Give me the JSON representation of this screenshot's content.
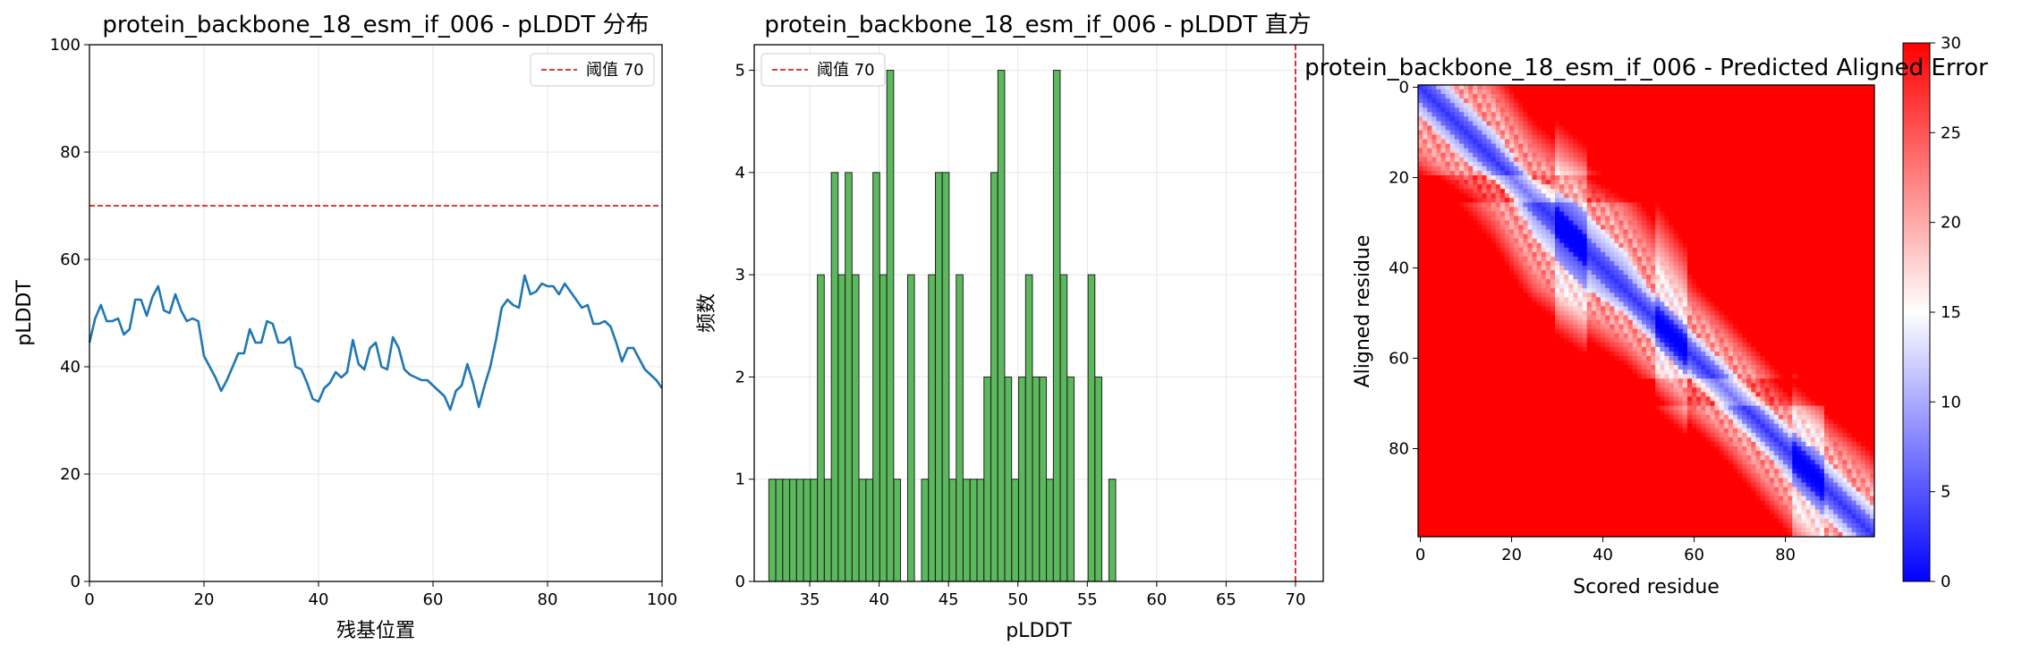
{
  "chart_data": [
    {
      "type": "line",
      "title": "protein_backbone_18_esm_if_006 - pLDDT 分布",
      "xlabel": "残基位置",
      "ylabel": "pLDDT",
      "xlim": [
        0,
        100
      ],
      "ylim": [
        0,
        100
      ],
      "xticks": [
        "0",
        "20",
        "40",
        "60",
        "80",
        "100"
      ],
      "yticks": [
        "0",
        "20",
        "40",
        "60",
        "80",
        "100"
      ],
      "grid": true,
      "legend_position": "top-right",
      "threshold": {
        "value": 70,
        "label": "阈值 70",
        "color": "#e31a1c"
      },
      "series": [
        {
          "color": "#1f77b4",
          "x": [
            0,
            1,
            2,
            3,
            4,
            5,
            6,
            7,
            8,
            9,
            10,
            11,
            12,
            13,
            14,
            15,
            16,
            17,
            18,
            19,
            20,
            21,
            22,
            23,
            24,
            25,
            26,
            27,
            28,
            29,
            30,
            31,
            32,
            33,
            34,
            35,
            36,
            37,
            38,
            39,
            40,
            41,
            42,
            43,
            44,
            45,
            46,
            47,
            48,
            49,
            50,
            51,
            52,
            53,
            54,
            55,
            56,
            57,
            58,
            59,
            60,
            61,
            62,
            63,
            64,
            65,
            66,
            67,
            68,
            69,
            70,
            71,
            72,
            73,
            74,
            75,
            76,
            77,
            78,
            79,
            80,
            81,
            82,
            83,
            84,
            85,
            86,
            87,
            88,
            89,
            90,
            91,
            92,
            93,
            94,
            95,
            96,
            97,
            98,
            99,
            100
          ],
          "y": [
            44.5,
            49,
            51.5,
            48.5,
            48.5,
            49,
            46,
            47,
            52.5,
            52.5,
            49.5,
            53,
            55,
            50.5,
            50,
            53.5,
            50.5,
            48.5,
            49,
            48.5,
            42,
            40,
            38,
            35.5,
            37.5,
            40,
            42.5,
            42.5,
            47,
            44.5,
            44.5,
            48.5,
            48,
            44.5,
            44.5,
            45.5,
            40,
            39.5,
            37,
            34,
            33.5,
            36,
            37,
            39,
            38,
            39,
            45,
            40.5,
            39.5,
            43.5,
            44.5,
            40,
            39.5,
            45.5,
            43.5,
            39.5,
            38.5,
            38,
            37.5,
            37.5,
            36.5,
            35.5,
            34.5,
            32,
            35.5,
            36.5,
            40.5,
            37,
            32.5,
            36.5,
            40,
            45,
            51,
            52.5,
            51.5,
            51,
            57,
            53.5,
            54,
            55.5,
            55,
            55,
            53.5,
            55.5,
            54,
            52.5,
            51,
            51.5,
            48,
            48,
            48.5,
            47.5,
            44.5,
            41,
            43.5,
            43.5,
            41.5,
            39.5,
            38.5,
            37.5,
            36
          ]
        }
      ]
    },
    {
      "type": "bar",
      "title": "protein_backbone_18_esm_if_006 - pLDDT 直方",
      "xlabel": "pLDDT",
      "ylabel": "频数",
      "xlim": [
        31,
        72
      ],
      "ylim": [
        0,
        5.25
      ],
      "xticks": [
        "35",
        "40",
        "45",
        "50",
        "55",
        "60",
        "65",
        "70"
      ],
      "yticks": [
        "0",
        "1",
        "2",
        "3",
        "4",
        "5"
      ],
      "grid": true,
      "legend_position": "top-left",
      "threshold": {
        "value": 70,
        "label": "阈值 70",
        "color": "#e31a1c"
      },
      "bin_width": 0.49,
      "bar_color": "#5cb85c",
      "bins": [
        {
          "x": 32.3,
          "count": 1
        },
        {
          "x": 32.8,
          "count": 1
        },
        {
          "x": 33.3,
          "count": 1
        },
        {
          "x": 33.8,
          "count": 1
        },
        {
          "x": 34.3,
          "count": 1
        },
        {
          "x": 34.8,
          "count": 1
        },
        {
          "x": 35.3,
          "count": 1
        },
        {
          "x": 35.8,
          "count": 3
        },
        {
          "x": 36.3,
          "count": 1
        },
        {
          "x": 36.8,
          "count": 4
        },
        {
          "x": 37.3,
          "count": 3
        },
        {
          "x": 37.8,
          "count": 4
        },
        {
          "x": 38.3,
          "count": 3
        },
        {
          "x": 38.8,
          "count": 1
        },
        {
          "x": 39.3,
          "count": 1
        },
        {
          "x": 39.8,
          "count": 4
        },
        {
          "x": 40.3,
          "count": 3
        },
        {
          "x": 40.8,
          "count": 5
        },
        {
          "x": 41.3,
          "count": 1
        },
        {
          "x": 41.8,
          "count": 0
        },
        {
          "x": 42.3,
          "count": 3
        },
        {
          "x": 42.8,
          "count": 0
        },
        {
          "x": 43.3,
          "count": 1
        },
        {
          "x": 43.8,
          "count": 3
        },
        {
          "x": 44.3,
          "count": 4
        },
        {
          "x": 44.8,
          "count": 4
        },
        {
          "x": 45.3,
          "count": 1
        },
        {
          "x": 45.8,
          "count": 3
        },
        {
          "x": 46.3,
          "count": 1
        },
        {
          "x": 46.8,
          "count": 1
        },
        {
          "x": 47.3,
          "count": 1
        },
        {
          "x": 47.8,
          "count": 2
        },
        {
          "x": 48.3,
          "count": 4
        },
        {
          "x": 48.8,
          "count": 5
        },
        {
          "x": 49.3,
          "count": 2
        },
        {
          "x": 49.8,
          "count": 1
        },
        {
          "x": 50.3,
          "count": 2
        },
        {
          "x": 50.8,
          "count": 3
        },
        {
          "x": 51.3,
          "count": 2
        },
        {
          "x": 51.8,
          "count": 2
        },
        {
          "x": 52.3,
          "count": 1
        },
        {
          "x": 52.8,
          "count": 5
        },
        {
          "x": 53.3,
          "count": 3
        },
        {
          "x": 53.8,
          "count": 2
        },
        {
          "x": 54.3,
          "count": 0
        },
        {
          "x": 54.8,
          "count": 0
        },
        {
          "x": 55.3,
          "count": 3
        },
        {
          "x": 55.8,
          "count": 2
        },
        {
          "x": 56.3,
          "count": 0
        },
        {
          "x": 56.8,
          "count": 1
        }
      ]
    },
    {
      "type": "heatmap",
      "title": "protein_backbone_18_esm_if_006 - Predicted Aligned Error",
      "xlabel": "Scored residue",
      "ylabel": "Aligned residue",
      "size": 100,
      "xticks": [
        "0",
        "20",
        "40",
        "60",
        "80"
      ],
      "yticks": [
        "0",
        "20",
        "40",
        "60",
        "80"
      ],
      "colorbar": {
        "min": 0,
        "max": 30,
        "ticks": [
          "0",
          "5",
          "10",
          "15",
          "20",
          "25",
          "30"
        ]
      },
      "colormap": [
        "#0000ff",
        "#ffffff",
        "#ff0000"
      ],
      "diagonal_path": [
        [
          0,
          0
        ],
        [
          16,
          14
        ],
        [
          25,
          25
        ],
        [
          45,
          40
        ],
        [
          65,
          62
        ],
        [
          80,
          80
        ],
        [
          99,
          99
        ]
      ]
    }
  ]
}
